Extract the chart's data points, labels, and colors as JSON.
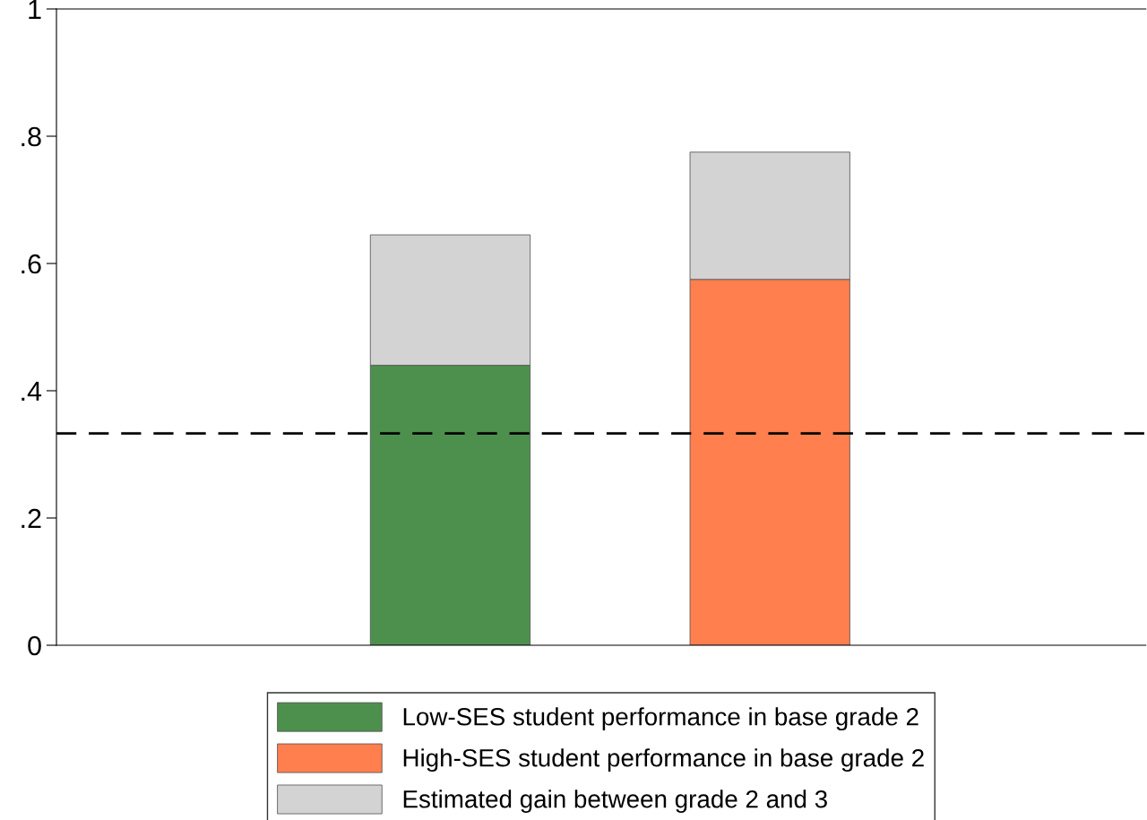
{
  "chart_data": {
    "type": "bar",
    "stacked": true,
    "categories": [
      null,
      null
    ],
    "series": [
      {
        "name": "Low-SES student performance in base grade 2",
        "color": "#4d904d",
        "values": [
          0.44,
          null
        ]
      },
      {
        "name": "High-SES student performance in base grade 2",
        "color": "#ff7f4f",
        "values": [
          null,
          0.575
        ]
      },
      {
        "name": "Estimated gain between grade 2 and 3",
        "color": "#d3d3d3",
        "values": [
          0.205,
          0.2
        ]
      }
    ],
    "ylim": [
      0,
      1
    ],
    "yticks": [
      {
        "value": 0,
        "label": "0"
      },
      {
        "value": 0.2,
        "label": ".2"
      },
      {
        "value": 0.4,
        "label": ".4"
      },
      {
        "value": 0.6,
        "label": ".6"
      },
      {
        "value": 0.8,
        "label": ".8"
      },
      {
        "value": 1,
        "label": "1"
      }
    ],
    "ref_lines": [
      {
        "axis": "y",
        "value": 0.333,
        "color": "#000000",
        "line_style": "dashed"
      }
    ],
    "legend": "bottom",
    "grid": false
  }
}
